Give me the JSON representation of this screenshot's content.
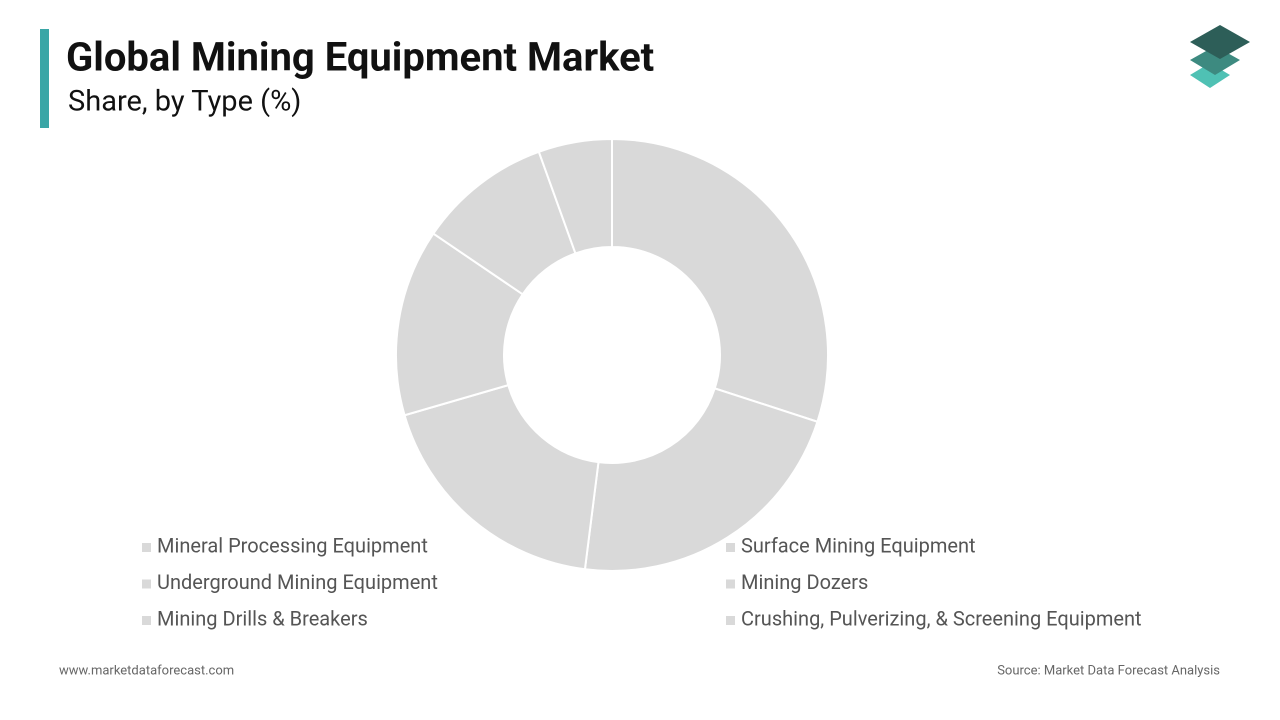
{
  "chart_data": {
    "type": "pie",
    "title": "Global Mining Equipment Market",
    "subtitle": "Share, by Type (%)",
    "categories": [
      "Mineral Processing Equipment",
      "Surface Mining Equipment",
      "Underground Mining Equipment",
      "Mining Dozers",
      "Mining Drills & Breakers",
      "Crushing, Pulverizing, & Screening Equipment"
    ],
    "values": [
      30,
      22,
      18.5,
      14,
      10,
      5.5
    ],
    "colors": [
      "#d9d9d9",
      "#d9d9d9",
      "#d9d9d9",
      "#d9d9d9",
      "#d9d9d9",
      "#d9d9d9"
    ],
    "website": "www.marketdataforecast.com",
    "source": "Source: Market Data Forecast Analysis"
  }
}
